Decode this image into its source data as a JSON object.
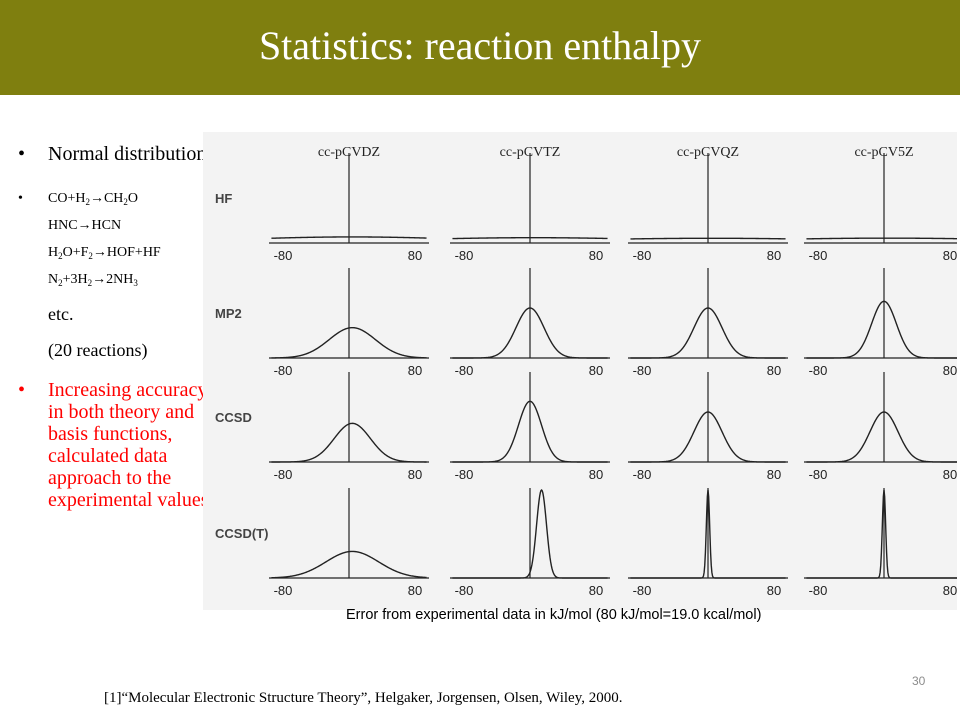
{
  "slide": {
    "title": "Statistics: reaction enthalpy",
    "page_number": "30",
    "reference": "[1]“Molecular Electronic Structure Theory”, Helgaker, Jorgensen, Olsen, Wiley, 2000.",
    "caption": "Error from experimental data in kJ/mol (80 kJ/mol=19.0 kcal/mol)",
    "title_bar_color": "#7f7f0f",
    "highlight_color": "#ff0000"
  },
  "bullets": {
    "normal_distribution": "Normal distribution",
    "reactions": [
      {
        "parts": [
          "CO+H",
          "2",
          "→CH",
          "2",
          "O"
        ]
      },
      {
        "parts": [
          "HNC→HCN"
        ]
      },
      {
        "parts": [
          "H",
          "2",
          "O+F",
          "2",
          "→HOF+HF"
        ]
      },
      {
        "parts": [
          "N",
          "2",
          "+3H",
          "2",
          "→2NH",
          "3"
        ]
      }
    ],
    "etc": "etc.",
    "count": "(20 reactions)",
    "conclusion": "Increasing accuracy in both theory and basis functions, calculated data approach to the experimental values."
  },
  "figure": {
    "basis_sets": [
      "cc-pCVDZ",
      "cc-pCVTZ",
      "cc-pCVQZ",
      "cc-pCV5Z"
    ],
    "methods": [
      "HF",
      "MP2",
      "CCSD",
      "CCSD(T)"
    ],
    "tick_labels": [
      "-80",
      "80"
    ],
    "x_range": [
      -80,
      80
    ],
    "distribution_widths_kJmol": [
      [
        140,
        160,
        180,
        175
      ],
      [
        28,
        17,
        17,
        15
      ],
      [
        22,
        14,
        17,
        17
      ],
      [
        32,
        6,
        2,
        2
      ]
    ]
  }
}
